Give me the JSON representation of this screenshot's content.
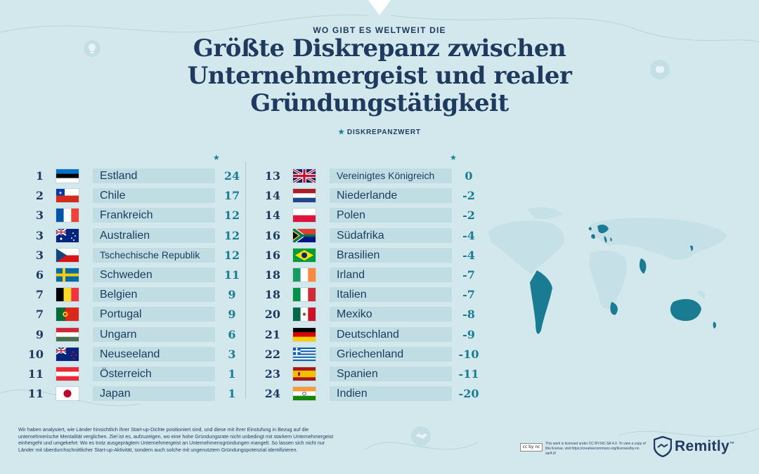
{
  "header": {
    "kicker": "WO GIBT ES WELTWEIT DIE",
    "title_lines": [
      "Größte Diskrepanz zwischen",
      "Unternehmergeist und realer",
      "Gründungstätigkeit"
    ],
    "legend_label": "DISKREPANZWERT",
    "legend_icon": "star-icon"
  },
  "colors": {
    "background": "#d3e8ec",
    "navy": "#1e3a5f",
    "teal": "#1a7c93",
    "name_box": "#bfdde3",
    "map_land": "#c5e0e6",
    "map_highlight": "#1a7c93"
  },
  "left_column": [
    {
      "rank": "1",
      "country": "Estland",
      "value": "24",
      "flag": "estonia-flag"
    },
    {
      "rank": "2",
      "country": "Chile",
      "value": "17",
      "flag": "chile-flag"
    },
    {
      "rank": "3",
      "country": "Frankreich",
      "value": "12",
      "flag": "france-flag"
    },
    {
      "rank": "3",
      "country": "Australien",
      "value": "12",
      "flag": "australia-flag"
    },
    {
      "rank": "3",
      "country": "Tschechische Republik",
      "value": "12",
      "flag": "czechia-flag"
    },
    {
      "rank": "6",
      "country": "Schweden",
      "value": "11",
      "flag": "sweden-flag"
    },
    {
      "rank": "7",
      "country": "Belgien",
      "value": "9",
      "flag": "belgium-flag"
    },
    {
      "rank": "7",
      "country": "Portugal",
      "value": "9",
      "flag": "portugal-flag"
    },
    {
      "rank": "9",
      "country": "Ungarn",
      "value": "6",
      "flag": "hungary-flag"
    },
    {
      "rank": "10",
      "country": "Neuseeland",
      "value": "3",
      "flag": "new-zealand-flag"
    },
    {
      "rank": "11",
      "country": "Österreich",
      "value": "1",
      "flag": "austria-flag"
    },
    {
      "rank": "11",
      "country": "Japan",
      "value": "1",
      "flag": "japan-flag"
    }
  ],
  "right_column": [
    {
      "rank": "13",
      "country": "Vereinigtes Königreich",
      "value": "0",
      "flag": "uk-flag"
    },
    {
      "rank": "14",
      "country": "Niederlande",
      "value": "-2",
      "flag": "netherlands-flag"
    },
    {
      "rank": "14",
      "country": "Polen",
      "value": "-2",
      "flag": "poland-flag"
    },
    {
      "rank": "16",
      "country": "Südafrika",
      "value": "-4",
      "flag": "south-africa-flag"
    },
    {
      "rank": "16",
      "country": "Brasilien",
      "value": "-4",
      "flag": "brazil-flag"
    },
    {
      "rank": "18",
      "country": "Irland",
      "value": "-7",
      "flag": "ireland-flag"
    },
    {
      "rank": "18",
      "country": "Italien",
      "value": "-7",
      "flag": "italy-flag"
    },
    {
      "rank": "20",
      "country": "Mexiko",
      "value": "-8",
      "flag": "mexico-flag"
    },
    {
      "rank": "21",
      "country": "Deutschland",
      "value": "-9",
      "flag": "germany-flag"
    },
    {
      "rank": "22",
      "country": "Griechenland",
      "value": "-10",
      "flag": "greece-flag"
    },
    {
      "rank": "23",
      "country": "Spanien",
      "value": "-11",
      "flag": "spain-flag"
    },
    {
      "rank": "24",
      "country": "Indien",
      "value": "-20",
      "flag": "india-flag"
    }
  ],
  "footnote": "Wir haben analysiert, wie Länder hinsichtlich ihrer Start-up-Dichte positioniert sind, und diese mit ihrer Einstufung in Bezug auf die unternehmerische Mentalität verglichen. Ziel ist es, aufzuzeigen, wo eine hohe Gründungsrate nicht unbedingt mit starkem Unternehmergeist einhergeht und umgekehrt: Wo es trotz ausgeprägtem Unternehmergeist an Unternehmensgründungen mangelt. So lassen sich nicht nur Länder mit überdurchschnittlicher Start-up-Aktivität, sondern auch solche mit ungenutztem Gründungspotenzial identifizieren.",
  "license": {
    "badge": "cc by nc",
    "text": "This work is licensed under CC BY-NC-SA 4.0. To view a copy of this license, visit https://creativecommons.org/licenses/by-nc-sa/4.0/"
  },
  "brand": {
    "name": "Remitly",
    "trademark": "™",
    "logo_icon": "remitly-shield-handshake-icon"
  },
  "decorations": [
    "lightbulb-icon",
    "brain-icon",
    "handshake-icon"
  ]
}
